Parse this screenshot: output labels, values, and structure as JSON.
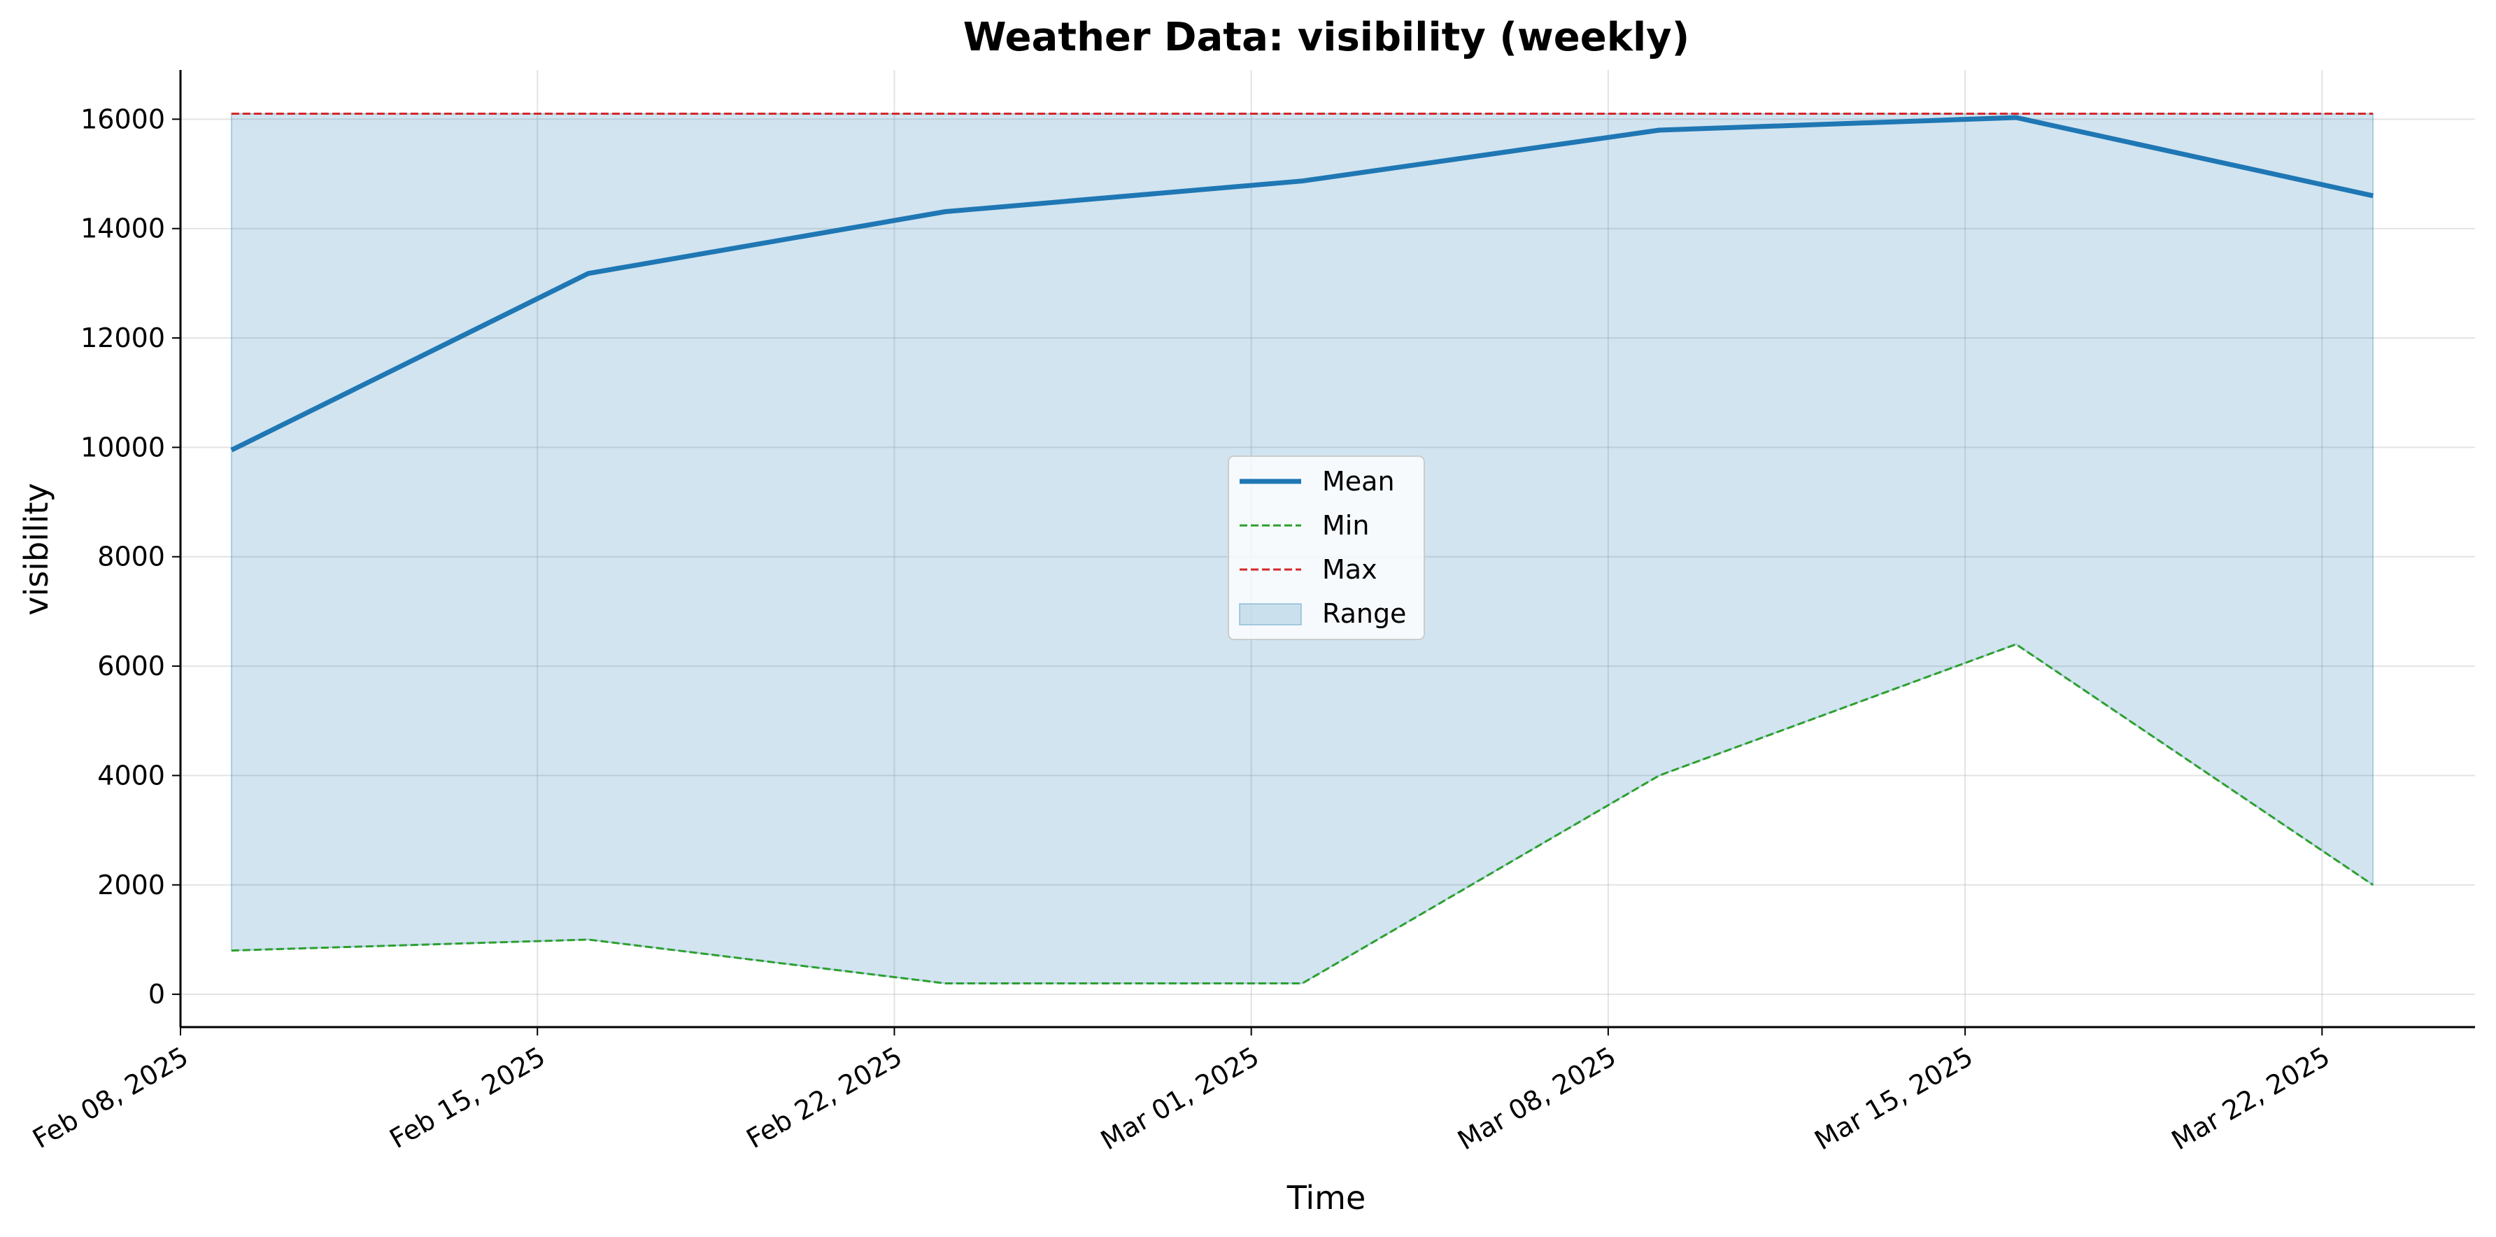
{
  "chart_data": {
    "type": "line",
    "title": "Weather Data: visibility (weekly)",
    "xlabel": "Time",
    "ylabel": "visibility",
    "x": [
      "2025-02-09",
      "2025-02-16",
      "2025-02-23",
      "2025-03-02",
      "2025-03-09",
      "2025-03-16",
      "2025-03-23"
    ],
    "series": [
      {
        "name": "Mean",
        "values": [
          9950,
          13180,
          14310,
          14870,
          15800,
          16030,
          14600
        ],
        "color": "#1f77b4",
        "style": "solid"
      },
      {
        "name": "Min",
        "values": [
          800,
          1000,
          200,
          200,
          4000,
          6400,
          2000
        ],
        "color": "#2ca02c",
        "style": "dashed"
      },
      {
        "name": "Max",
        "values": [
          16100,
          16100,
          16100,
          16100,
          16100,
          16100,
          16100
        ],
        "color": "#d62728",
        "style": "dashed"
      }
    ],
    "range": {
      "name": "Range",
      "color": "#1f77b4",
      "opacity": 0.2,
      "between": [
        "Min",
        "Max"
      ]
    },
    "x_ticks": [
      {
        "date": "2025-02-08",
        "label": "Feb 08, 2025"
      },
      {
        "date": "2025-02-15",
        "label": "Feb 15, 2025"
      },
      {
        "date": "2025-02-22",
        "label": "Feb 22, 2025"
      },
      {
        "date": "2025-03-01",
        "label": "Mar 01, 2025"
      },
      {
        "date": "2025-03-08",
        "label": "Mar 08, 2025"
      },
      {
        "date": "2025-03-15",
        "label": "Mar 15, 2025"
      },
      {
        "date": "2025-03-22",
        "label": "Mar 22, 2025"
      }
    ],
    "y_ticks": [
      0,
      2000,
      4000,
      6000,
      8000,
      10000,
      12000,
      14000,
      16000
    ],
    "xlim": [
      "2025-02-08",
      "2025-03-25"
    ],
    "ylim": [
      -600,
      16900
    ],
    "grid": true,
    "legend_position": "center"
  }
}
